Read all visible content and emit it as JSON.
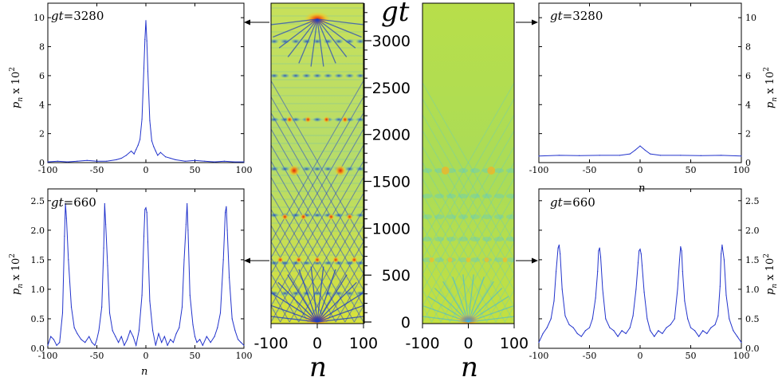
{
  "colors": {
    "line": "#2233cc",
    "frame": "#000000",
    "hot": "#d42a10",
    "warm": "#f0b020",
    "mid": "#d8e83a",
    "cool": "#38a8e0",
    "deep": "#2040c0"
  },
  "center_axis": {
    "ylabel": "gt",
    "yticks": [
      "0",
      "500",
      "1000",
      "1500",
      "2000",
      "2500",
      "3000"
    ],
    "ytick_values": [
      0,
      500,
      1000,
      1500,
      2000,
      2500,
      3000
    ],
    "ylim": [
      0,
      3400
    ],
    "xticks": [
      "-100",
      "0",
      "100"
    ],
    "xlabel_left": "n",
    "xlabel_right": "n"
  },
  "chart_data": [
    {
      "id": "top-left",
      "type": "line",
      "label_var": "gt",
      "label_value": "=3280",
      "xlabel": "",
      "ylabel_main": "p",
      "ylabel_sub": "n",
      "ylabel_rest": " x 10",
      "ylabel_sup": "2",
      "xlim": [
        -100,
        100
      ],
      "ylim": [
        0,
        11
      ],
      "xticks": [
        "-100",
        "-50",
        "0",
        "50",
        "100"
      ],
      "xtick_values": [
        -100,
        -50,
        0,
        50,
        100
      ],
      "yticks": [
        "0",
        "2",
        "4",
        "6",
        "8",
        "10"
      ],
      "ytick_values": [
        0,
        2,
        4,
        6,
        8,
        10
      ],
      "x": [
        -100,
        -90,
        -80,
        -70,
        -60,
        -50,
        -40,
        -30,
        -25,
        -20,
        -15,
        -12,
        -10,
        -8,
        -6,
        -4,
        -2,
        -1,
        0,
        1,
        2,
        4,
        6,
        8,
        10,
        12,
        15,
        20,
        25,
        30,
        40,
        50,
        60,
        70,
        80,
        90,
        100
      ],
      "values": [
        0.05,
        0.1,
        0.05,
        0.1,
        0.15,
        0.1,
        0.1,
        0.2,
        0.3,
        0.5,
        0.8,
        0.6,
        0.9,
        1.2,
        1.6,
        3.0,
        6.5,
        8.5,
        9.8,
        8.4,
        6.3,
        2.9,
        1.5,
        1.1,
        0.8,
        0.5,
        0.7,
        0.4,
        0.3,
        0.2,
        0.1,
        0.15,
        0.1,
        0.05,
        0.1,
        0.05,
        0.05
      ]
    },
    {
      "id": "bottom-left",
      "type": "line",
      "label_var": "gt",
      "label_value": "=660",
      "xlabel": "n",
      "ylabel_main": "p",
      "ylabel_sub": "n",
      "ylabel_rest": " x 10",
      "ylabel_sup": "2",
      "xlim": [
        -100,
        100
      ],
      "ylim": [
        0,
        2.7
      ],
      "xticks": [
        "-100",
        "-50",
        "0",
        "50",
        "100"
      ],
      "xtick_values": [
        -100,
        -50,
        0,
        50,
        100
      ],
      "yticks": [
        "0.0",
        "0.5",
        "1.0",
        "1.5",
        "2.0",
        "2.5"
      ],
      "ytick_values": [
        0,
        0.5,
        1.0,
        1.5,
        2.0,
        2.5
      ],
      "x": [
        -100,
        -97,
        -94,
        -91,
        -88,
        -85,
        -83,
        -82,
        -81,
        -79,
        -76,
        -73,
        -70,
        -66,
        -62,
        -58,
        -55,
        -52,
        -50,
        -48,
        -45,
        -43,
        -42,
        -41,
        -39,
        -37,
        -34,
        -31,
        -28,
        -25,
        -22,
        -19,
        -16,
        -13,
        -10,
        -7,
        -4,
        -2,
        -1,
        0,
        1,
        2,
        4,
        7,
        10,
        13,
        16,
        19,
        22,
        25,
        28,
        31,
        34,
        37,
        39,
        41,
        42,
        43,
        45,
        48,
        50,
        52,
        55,
        58,
        62,
        66,
        70,
        73,
        76,
        79,
        81,
        82,
        83,
        85,
        88,
        91,
        94,
        97,
        100
      ],
      "values": [
        0.05,
        0.2,
        0.15,
        0.05,
        0.1,
        0.6,
        1.9,
        2.45,
        2.2,
        1.5,
        0.7,
        0.35,
        0.25,
        0.15,
        0.1,
        0.2,
        0.1,
        0.05,
        0.15,
        0.3,
        0.7,
        1.7,
        2.45,
        2.1,
        1.4,
        0.6,
        0.3,
        0.2,
        0.1,
        0.2,
        0.05,
        0.15,
        0.3,
        0.2,
        0.05,
        0.3,
        0.9,
        1.9,
        2.35,
        2.38,
        2.3,
        1.8,
        0.8,
        0.3,
        0.05,
        0.25,
        0.1,
        0.2,
        0.05,
        0.15,
        0.1,
        0.25,
        0.35,
        0.7,
        1.5,
        2.1,
        2.45,
        2.0,
        0.9,
        0.4,
        0.2,
        0.1,
        0.15,
        0.05,
        0.2,
        0.1,
        0.2,
        0.35,
        0.6,
        1.5,
        2.3,
        2.4,
        2.0,
        1.2,
        0.5,
        0.3,
        0.15,
        0.1,
        0.05
      ]
    },
    {
      "id": "top-right",
      "type": "line",
      "label_var": "gt",
      "label_value": "=3280",
      "xlabel": "n",
      "ylabel_main": "p",
      "ylabel_sub": "n",
      "ylabel_rest": " x 10",
      "ylabel_sup": "2",
      "xlim": [
        -100,
        100
      ],
      "ylim": [
        0,
        11
      ],
      "xticks": [
        "-100",
        "-50",
        "0",
        "50",
        "100"
      ],
      "xtick_values": [
        -100,
        -50,
        0,
        50,
        100
      ],
      "yticks": [
        "0",
        "2",
        "4",
        "6",
        "8",
        "10"
      ],
      "ytick_values": [
        0,
        2,
        4,
        6,
        8,
        10
      ],
      "x": [
        -100,
        -80,
        -60,
        -40,
        -20,
        -10,
        -5,
        0,
        5,
        10,
        20,
        40,
        60,
        80,
        100
      ],
      "values": [
        0.45,
        0.5,
        0.48,
        0.5,
        0.5,
        0.6,
        0.85,
        1.15,
        0.85,
        0.6,
        0.5,
        0.5,
        0.48,
        0.5,
        0.45
      ]
    },
    {
      "id": "bottom-right",
      "type": "line",
      "label_var": "gt",
      "label_value": "=660",
      "xlabel": "",
      "ylabel_main": "p",
      "ylabel_sub": "n",
      "ylabel_rest": " x 10",
      "ylabel_sup": "2",
      "xlim": [
        -100,
        100
      ],
      "ylim": [
        0,
        2.7
      ],
      "xticks": [
        "-100",
        "-50",
        "0",
        "50",
        "100"
      ],
      "xtick_values": [
        -100,
        -50,
        0,
        50,
        100
      ],
      "yticks": [
        "0.0",
        "0.5",
        "1.0",
        "1.5",
        "2.0",
        "2.5"
      ],
      "ytick_values": [
        0,
        0.5,
        1.0,
        1.5,
        2.0,
        2.5
      ],
      "x": [
        -100,
        -96,
        -92,
        -88,
        -85,
        -83,
        -81,
        -80,
        -79,
        -77,
        -74,
        -70,
        -66,
        -62,
        -58,
        -54,
        -50,
        -47,
        -44,
        -42,
        -41,
        -40,
        -39,
        -37,
        -34,
        -30,
        -26,
        -22,
        -18,
        -14,
        -10,
        -7,
        -4,
        -2,
        -1,
        0,
        1,
        2,
        4,
        7,
        10,
        14,
        18,
        22,
        26,
        30,
        34,
        37,
        39,
        40,
        41,
        42,
        44,
        47,
        50,
        54,
        58,
        62,
        66,
        70,
        74,
        77,
        79,
        80,
        81,
        83,
        85,
        88,
        92,
        96,
        100
      ],
      "values": [
        0.1,
        0.25,
        0.35,
        0.5,
        0.8,
        1.3,
        1.7,
        1.75,
        1.6,
        1.0,
        0.55,
        0.4,
        0.35,
        0.25,
        0.2,
        0.3,
        0.35,
        0.5,
        0.85,
        1.3,
        1.65,
        1.7,
        1.55,
        1.0,
        0.5,
        0.35,
        0.3,
        0.2,
        0.3,
        0.25,
        0.35,
        0.55,
        1.0,
        1.45,
        1.65,
        1.68,
        1.6,
        1.4,
        0.95,
        0.5,
        0.3,
        0.2,
        0.3,
        0.25,
        0.35,
        0.4,
        0.5,
        1.0,
        1.5,
        1.72,
        1.65,
        1.3,
        0.8,
        0.5,
        0.35,
        0.3,
        0.2,
        0.3,
        0.25,
        0.35,
        0.4,
        0.55,
        1.05,
        1.6,
        1.75,
        1.5,
        0.9,
        0.5,
        0.3,
        0.2,
        0.1
      ]
    }
  ]
}
